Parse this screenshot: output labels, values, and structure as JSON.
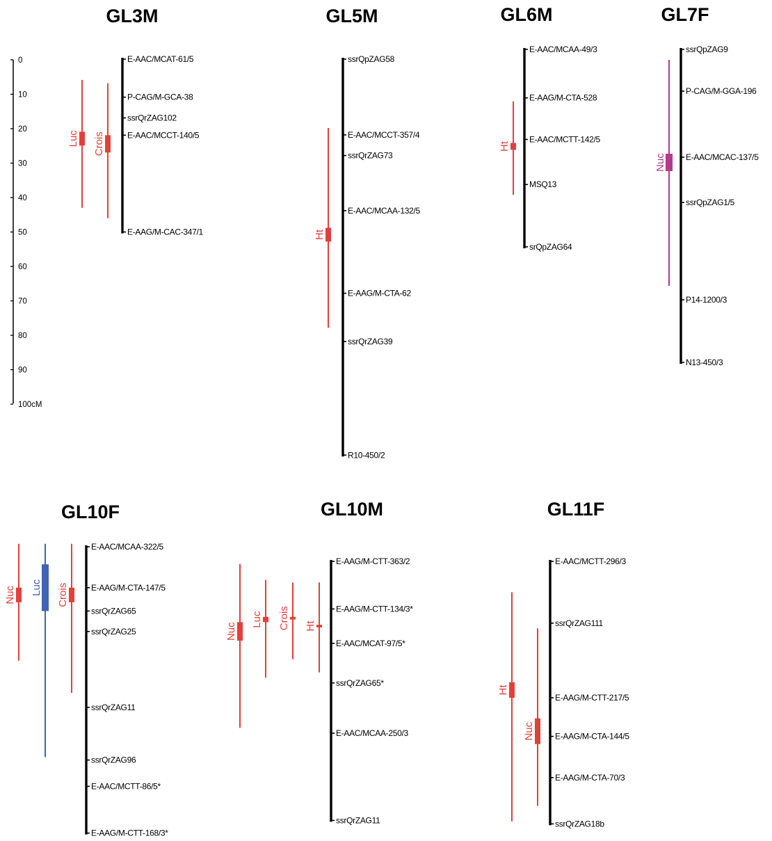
{
  "figure": {
    "scale_bar": {
      "ticks": [
        "0",
        "10",
        "20",
        "30",
        "40",
        "50",
        "60",
        "70",
        "80",
        "90",
        "100cM"
      ]
    },
    "linkage_groups": [
      {
        "id": "GL3M",
        "title": "GL3M",
        "markers": [
          {
            "name": "E-AAC/MCAT-61/5",
            "cM": 0
          },
          {
            "name": "P-CAG/M-GCA-38",
            "cM": 11
          },
          {
            "name": "ssrQrZAG102",
            "cM": 17
          },
          {
            "name": "E-AAC/MCCT-140/5",
            "cM": 22
          },
          {
            "name": "E-AAG/M-CAC-347/1",
            "cM": 50
          }
        ],
        "qtls": [
          {
            "trait": "Luc",
            "color": "#e2403a",
            "start": 6,
            "end": 43,
            "peak_start": 21,
            "peak_end": 25
          },
          {
            "trait": "Crois",
            "color": "#e2403a",
            "start": 7,
            "end": 46,
            "peak_start": 22,
            "peak_end": 27
          }
        ]
      },
      {
        "id": "GL5M",
        "title": "GL5M",
        "markers": [
          {
            "name": "ssrQpZAG58",
            "cM": 0
          },
          {
            "name": "E-AAC/MCCT-357/4",
            "cM": 22
          },
          {
            "name": "ssrQrZAG73",
            "cM": 28
          },
          {
            "name": "E-AAC/MCAA-132/5",
            "cM": 44
          },
          {
            "name": "E-AAG/M-CTA-62",
            "cM": 68
          },
          {
            "name": "ssrQrZAG39",
            "cM": 82
          },
          {
            "name": "R10-450/2",
            "cM": 115
          }
        ],
        "qtls": [
          {
            "trait": "Ht",
            "color": "#e2403a",
            "start": 20,
            "end": 78,
            "peak_start": 49,
            "peak_end": 53
          }
        ]
      },
      {
        "id": "GL6M",
        "title": "GL6M",
        "markers": [
          {
            "name": "E-AAC/MCAA-49/3",
            "cM": 0
          },
          {
            "name": "E-AAG/M-CTA-528",
            "cM": 14
          },
          {
            "name": "E-AAC/MCTT-142/5",
            "cM": 26
          },
          {
            "name": "MSQ13",
            "cM": 39
          },
          {
            "name": "srQpZAG64",
            "cM": 57
          }
        ],
        "qtls": [
          {
            "trait": "Ht",
            "color": "#e2403a",
            "start": 15,
            "end": 42,
            "peak_start": 27,
            "peak_end": 29
          }
        ]
      },
      {
        "id": "GL7F",
        "title": "GL7F",
        "markers": [
          {
            "name": "ssrQpZAG9",
            "cM": 0
          },
          {
            "name": "P-CAG/M-GGA-196",
            "cM": 12
          },
          {
            "name": "E-AAC/MCAC-137/5",
            "cM": 31
          },
          {
            "name": "ssrQpZAG1/5",
            "cM": 44
          },
          {
            "name": "P14-1200/3",
            "cM": 72
          },
          {
            "name": "N13-450/3",
            "cM": 90
          }
        ],
        "qtls": [
          {
            "trait": "Nuc",
            "color": "#b5398e",
            "start": 3,
            "end": 68,
            "peak_start": 30,
            "peak_end": 35
          }
        ]
      },
      {
        "id": "GL10F",
        "title": "GL10F",
        "markers": [
          {
            "name": "E-AAC/MCAA-322/5",
            "cM": 0
          },
          {
            "name": "E-AAG/M-CTA-147/5",
            "cM": 14
          },
          {
            "name": "ssrQrZAG65",
            "cM": 22
          },
          {
            "name": "ssrQrZAG25",
            "cM": 29
          },
          {
            "name": "ssrQrZAG11",
            "cM": 55
          },
          {
            "name": "ssrQrZAG96",
            "cM": 73
          },
          {
            "name": "E-AAC/MCTT-86/5*",
            "cM": 82
          },
          {
            "name": "E-AAG/M-CTT-168/3*",
            "cM": 98
          }
        ],
        "qtls": [
          {
            "trait": "Nuc",
            "color": "#e2403a",
            "start": -1,
            "end": 39,
            "peak_start": 14,
            "peak_end": 19
          },
          {
            "trait": "Luc",
            "color": "#3e63b8",
            "start": -1,
            "end": 72,
            "peak_start": 6,
            "peak_end": 22
          },
          {
            "trait": "Crois",
            "color": "#e2403a",
            "start": -1,
            "end": 50,
            "peak_start": 14,
            "peak_end": 19
          }
        ]
      },
      {
        "id": "GL10M",
        "title": "GL10M",
        "markers": [
          {
            "name": "E-AAG/M-CTT-363/2",
            "cM": 0
          },
          {
            "name": "E-AAG/M-CTT-134/3*",
            "cM": 18
          },
          {
            "name": "E-AAC/MCAT-97/5*",
            "cM": 31
          },
          {
            "name": "ssrQrZAG65*",
            "cM": 46
          },
          {
            "name": "E-AAC/MCAA-250/3",
            "cM": 65
          },
          {
            "name": "ssrQrZAG11",
            "cM": 98
          }
        ],
        "qtls": [
          {
            "trait": "Nuc",
            "color": "#e2403a",
            "start": 1,
            "end": 63,
            "peak_start": 23,
            "peak_end": 30
          },
          {
            "trait": "Luc",
            "color": "#e2403a",
            "start": 7,
            "end": 44,
            "peak_start": 21,
            "peak_end": 23
          },
          {
            "trait": "Crois",
            "color": "#e2403a",
            "start": 8,
            "end": 37,
            "peak_start": 21,
            "peak_end": 22
          },
          {
            "trait": "Ht",
            "color": "#e2403a",
            "start": 8,
            "end": 42,
            "peak_start": 24,
            "peak_end": 25
          }
        ]
      },
      {
        "id": "GL11F",
        "title": "GL11F",
        "markers": [
          {
            "name": "E-AAC/MCTT-296/3",
            "cM": 0
          },
          {
            "name": "ssrQrZAG111",
            "cM": 24
          },
          {
            "name": "E-AAG/M-CTT-217/5",
            "cM": 53
          },
          {
            "name": "E-AAG/M-CTA-144/5",
            "cM": 68
          },
          {
            "name": "E-AAG/M-CTA-70/3",
            "cM": 84
          },
          {
            "name": "ssrQrZAG18b",
            "cM": 102
          }
        ],
        "qtls": [
          {
            "trait": "Ht",
            "color": "#e2403a",
            "start": 12,
            "end": 101,
            "peak_start": 47,
            "peak_end": 53
          },
          {
            "trait": "Nuc",
            "color": "#e2403a",
            "start": 26,
            "end": 95,
            "peak_start": 61,
            "peak_end": 71
          }
        ]
      }
    ]
  }
}
